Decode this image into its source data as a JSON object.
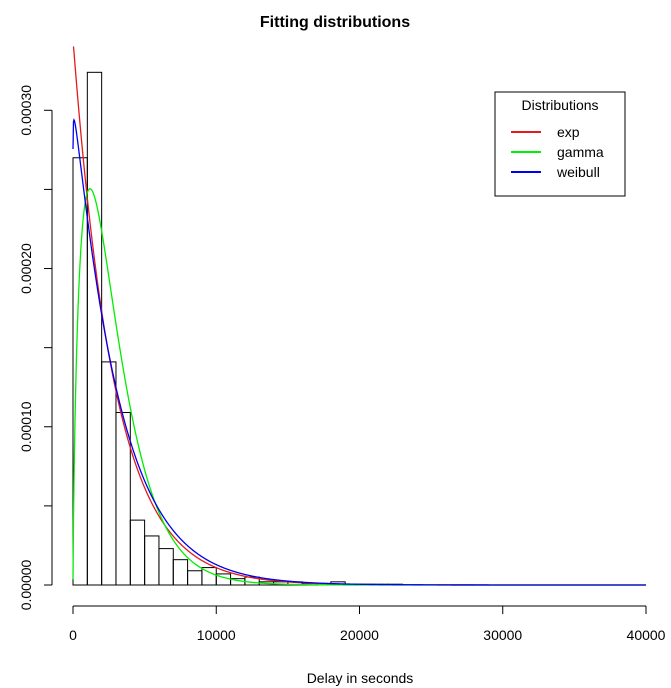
{
  "chart_data": {
    "type": "histogram",
    "title": "Fitting distributions",
    "xlabel": "Delay in seconds",
    "ylabel": "",
    "xlim": [
      0,
      40000
    ],
    "ylim": [
      0,
      0.00034
    ],
    "x_ticks": [
      0,
      10000,
      20000,
      30000,
      40000
    ],
    "x_tick_labels": [
      "0",
      "10000",
      "20000",
      "30000",
      "40000"
    ],
    "y_ticks": [
      0,
      0.0001,
      0.0002,
      0.0003
    ],
    "y_tick_labels": [
      "0.00000",
      "0.00010",
      "0.00020",
      "0.00030"
    ],
    "y_minor_ticks": [
      5e-05,
      0.00015,
      0.00025
    ],
    "y_minor_tick_labels": [
      "",
      "",
      ""
    ],
    "histogram": {
      "bin_width": 1000,
      "bin_starts": [
        0,
        1000,
        2000,
        3000,
        4000,
        5000,
        6000,
        7000,
        8000,
        9000,
        10000,
        11000,
        12000,
        13000,
        14000,
        15000,
        16000,
        17000,
        18000,
        19000,
        20000,
        21000,
        22000
      ],
      "densities": [
        0.00027,
        0.000324,
        0.000141,
        0.000109,
        4.1e-05,
        3.1e-05,
        2.3e-05,
        1.6e-05,
        9e-06,
        1.1e-05,
        7e-06,
        4e-06,
        5e-06,
        2e-06,
        2e-06,
        2e-06,
        1e-06,
        1e-06,
        2e-06,
        5e-07,
        5e-07,
        5e-07,
        5e-07
      ]
    },
    "series": [
      {
        "name": "exp",
        "color": "#e41a1c",
        "dist": "exp",
        "params": {
          "rate": 0.000345
        }
      },
      {
        "name": "gamma",
        "color": "#00ee00",
        "dist": "gamma",
        "params": {
          "shape": 1.7,
          "scale": 1700
        }
      },
      {
        "name": "weibull",
        "color": "#0000ee",
        "dist": "weibull",
        "params": {
          "shape": 1.02,
          "scale": 3150
        }
      }
    ],
    "legend": {
      "title": "Distributions",
      "position": "top-right"
    }
  }
}
